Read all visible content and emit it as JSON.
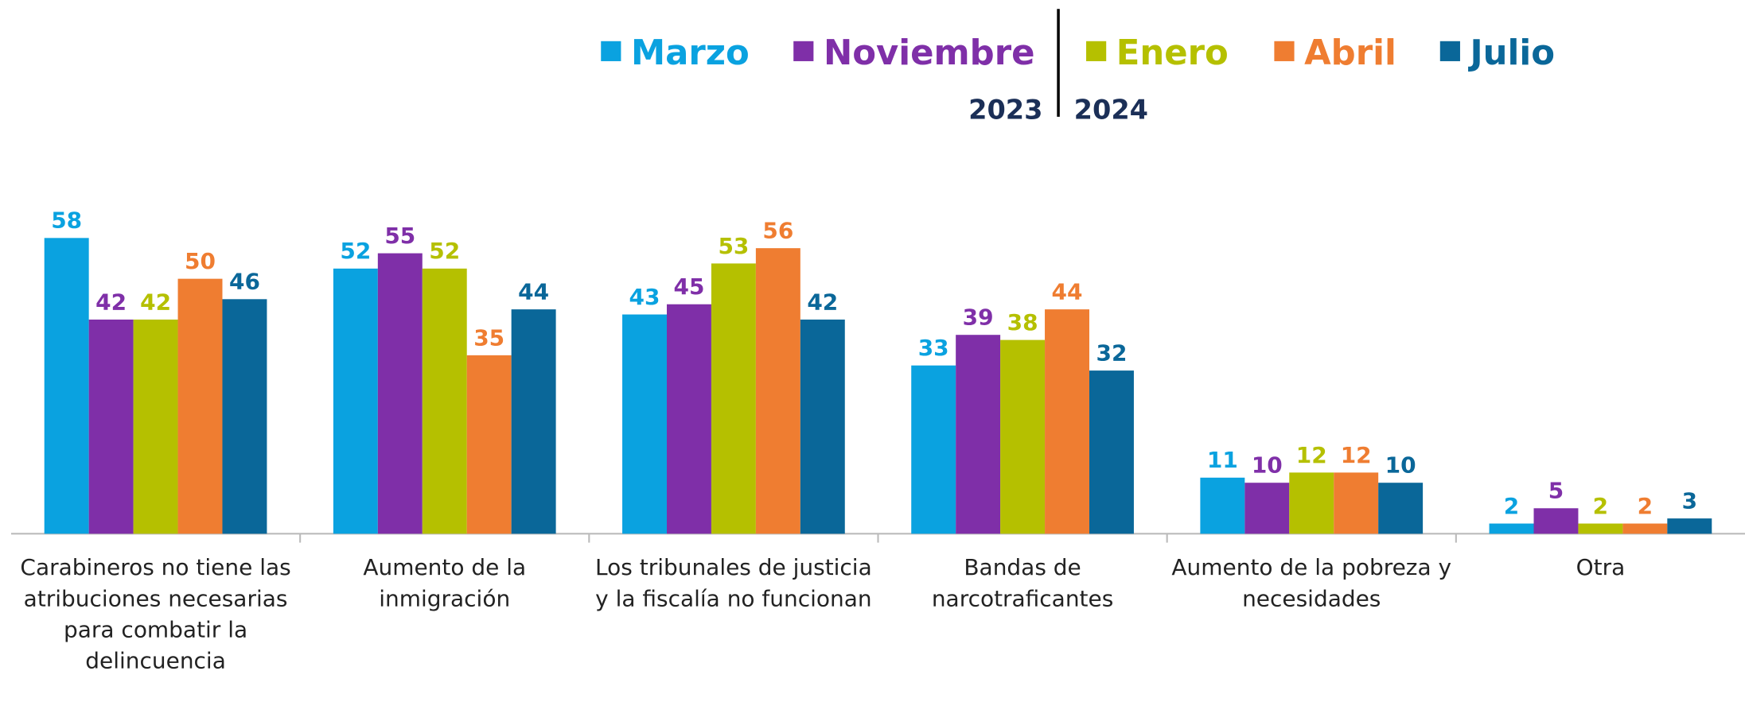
{
  "chart_data": {
    "type": "bar",
    "categories": [
      "Carabineros no tiene las atribuciones necesarias para combatir la delincuencia",
      "Aumento de la inmigración",
      "Los tribunales de justicia y la fiscalía no funcionan",
      "Bandas de narcotraficantes",
      "Aumento de la pobreza y necesidades",
      "Otra"
    ],
    "series": [
      {
        "name": "Marzo",
        "color": "#0aa2e0",
        "values": [
          58,
          52,
          43,
          33,
          11,
          2
        ]
      },
      {
        "name": "Noviembre",
        "color": "#7f2fa8",
        "values": [
          42,
          55,
          45,
          39,
          10,
          5
        ]
      },
      {
        "name": "Enero",
        "color": "#b5c000",
        "values": [
          42,
          52,
          53,
          38,
          12,
          2
        ]
      },
      {
        "name": "Abril",
        "color": "#ef7d31",
        "values": [
          50,
          35,
          56,
          44,
          12,
          2
        ]
      },
      {
        "name": "Julio",
        "color": "#0a6799",
        "values": [
          46,
          44,
          42,
          32,
          10,
          3
        ]
      }
    ],
    "annotations": [
      "2023",
      "2024"
    ]
  }
}
